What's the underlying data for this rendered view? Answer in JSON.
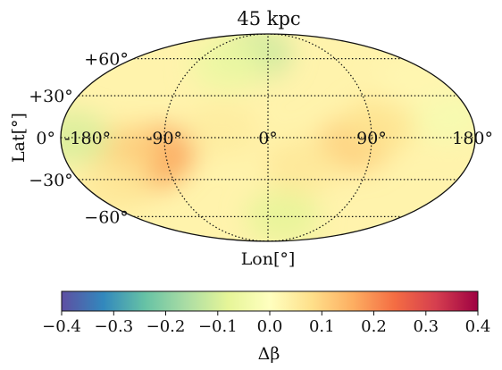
{
  "chart_data": {
    "type": "heatmap",
    "projection": "mollweide",
    "title": "45 kpc",
    "xlabel": "Lon[°]",
    "ylabel": "Lat[°]",
    "lon_ticks": [
      {
        "value": -180,
        "label": "-180°"
      },
      {
        "value": -90,
        "label": "-90°"
      },
      {
        "value": 0,
        "label": "0°"
      },
      {
        "value": 90,
        "label": "90°"
      },
      {
        "value": 180,
        "label": "180°"
      }
    ],
    "lat_ticks": [
      {
        "value": 60,
        "label": "+60°"
      },
      {
        "value": 30,
        "label": "+30°"
      },
      {
        "value": 0,
        "label": "0°"
      },
      {
        "value": -30,
        "label": "−30°"
      },
      {
        "value": -60,
        "label": "−60°"
      }
    ],
    "grid": true,
    "colorbar": {
      "label": "Δβ",
      "range": [
        -0.4,
        0.4
      ],
      "orientation": "horizontal",
      "placement": "bottom",
      "colormap": "Spectral_r",
      "ticks": [
        "−0.4",
        "−0.3",
        "−0.2",
        "−0.1",
        "0.0",
        "0.1",
        "0.2",
        "0.3",
        "0.4"
      ]
    },
    "value_blobs": [
      {
        "lon": -110,
        "lat": -20,
        "value": 0.16
      },
      {
        "lon": -95,
        "lat": -10,
        "value": 0.17
      },
      {
        "lon": -125,
        "lat": -10,
        "value": 0.1
      },
      {
        "lon": 75,
        "lat": -5,
        "value": 0.11
      },
      {
        "lon": 100,
        "lat": 10,
        "value": 0.07
      },
      {
        "lon": 30,
        "lat": -20,
        "value": 0.06
      },
      {
        "lon": -40,
        "lat": 5,
        "value": 0.05
      },
      {
        "lon": -150,
        "lat": -35,
        "value": 0.06
      },
      {
        "lon": -20,
        "lat": 65,
        "value": -0.12
      },
      {
        "lon": -50,
        "lat": 55,
        "value": -0.06
      },
      {
        "lon": 20,
        "lat": -60,
        "value": -0.08
      },
      {
        "lon": -170,
        "lat": 0,
        "value": -0.1
      },
      {
        "lon": 160,
        "lat": 15,
        "value": -0.03
      },
      {
        "lon": 150,
        "lat": 40,
        "value": 0.02
      }
    ],
    "background_value": 0.03
  }
}
